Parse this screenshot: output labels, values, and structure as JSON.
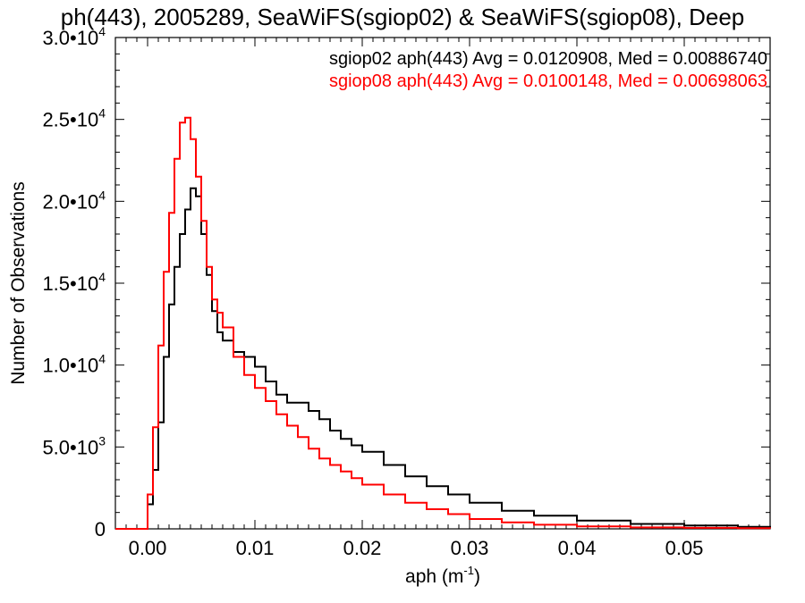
{
  "chart_data": {
    "type": "line",
    "title": "ph(443), 2005289, SeaWiFS(sgiop02) & SeaWiFS(sgiop08), Deep",
    "xlabel": "aph (m",
    "xlabel_sup": "-1",
    "xlabel_end": ")",
    "ylabel": "Number of Observations",
    "xlim": [
      -0.003,
      0.058
    ],
    "ylim": [
      0,
      30000
    ],
    "x_ticks": [
      {
        "value": 0.0,
        "label": "0.00"
      },
      {
        "value": 0.01,
        "label": "0.01"
      },
      {
        "value": 0.02,
        "label": "0.02"
      },
      {
        "value": 0.03,
        "label": "0.03"
      },
      {
        "value": 0.04,
        "label": "0.04"
      },
      {
        "value": 0.05,
        "label": "0.05"
      }
    ],
    "y_ticks": [
      {
        "value": 0,
        "label": "0",
        "sup": ""
      },
      {
        "value": 5000,
        "label": "5.0•10",
        "sup": "3"
      },
      {
        "value": 10000,
        "label": "1.0•10",
        "sup": "4"
      },
      {
        "value": 15000,
        "label": "1.5•10",
        "sup": "4"
      },
      {
        "value": 20000,
        "label": "2.0•10",
        "sup": "4"
      },
      {
        "value": 25000,
        "label": "2.5•10",
        "sup": "4"
      },
      {
        "value": 30000,
        "label": "3.0•10",
        "sup": "4"
      }
    ],
    "grid": false,
    "legend_position": "top-right",
    "series": [
      {
        "name": "sgiop02",
        "legend_label": "sgiop02 aph(443) Avg = 0.0120908, Med = 0.00886740",
        "color": "#000000",
        "x": [
          -0.003,
          -0.0005,
          0.0,
          0.0005,
          0.001,
          0.0015,
          0.002,
          0.0025,
          0.003,
          0.0035,
          0.004,
          0.0045,
          0.005,
          0.0055,
          0.006,
          0.0065,
          0.007,
          0.008,
          0.009,
          0.01,
          0.011,
          0.012,
          0.013,
          0.014,
          0.015,
          0.016,
          0.017,
          0.018,
          0.019,
          0.02,
          0.022,
          0.024,
          0.026,
          0.028,
          0.03,
          0.033,
          0.036,
          0.04,
          0.045,
          0.05,
          0.055,
          0.058
        ],
        "y": [
          0,
          0,
          1500,
          3600,
          6500,
          10500,
          13700,
          16000,
          18000,
          19500,
          20800,
          20300,
          18000,
          15500,
          13300,
          12000,
          11500,
          10800,
          10500,
          9900,
          9000,
          8200,
          7700,
          7700,
          7200,
          6700,
          6000,
          5500,
          5100,
          4700,
          3900,
          3200,
          2600,
          2100,
          1600,
          1100,
          800,
          500,
          300,
          200,
          120,
          80
        ]
      },
      {
        "name": "sgiop08",
        "legend_label": "sgiop08 aph(443) Avg = 0.0100148, Med = 0.00698063",
        "color": "#ff0000",
        "x": [
          -0.003,
          -0.0005,
          0.0,
          0.0005,
          0.001,
          0.0015,
          0.002,
          0.0025,
          0.003,
          0.0035,
          0.004,
          0.0045,
          0.005,
          0.0055,
          0.006,
          0.0065,
          0.007,
          0.008,
          0.009,
          0.01,
          0.011,
          0.012,
          0.013,
          0.014,
          0.015,
          0.016,
          0.017,
          0.018,
          0.019,
          0.02,
          0.022,
          0.024,
          0.026,
          0.028,
          0.03,
          0.033,
          0.036,
          0.04,
          0.045,
          0.05,
          0.055,
          0.058
        ],
        "y": [
          0,
          0,
          2100,
          6200,
          11200,
          15700,
          19300,
          22600,
          24800,
          25100,
          23800,
          21500,
          18800,
          16000,
          14000,
          13200,
          12300,
          10500,
          9400,
          8600,
          7800,
          7000,
          6300,
          5600,
          4900,
          4300,
          3900,
          3500,
          3100,
          2700,
          2100,
          1600,
          1200,
          900,
          600,
          400,
          250,
          150,
          90,
          60,
          40,
          30
        ]
      }
    ]
  }
}
